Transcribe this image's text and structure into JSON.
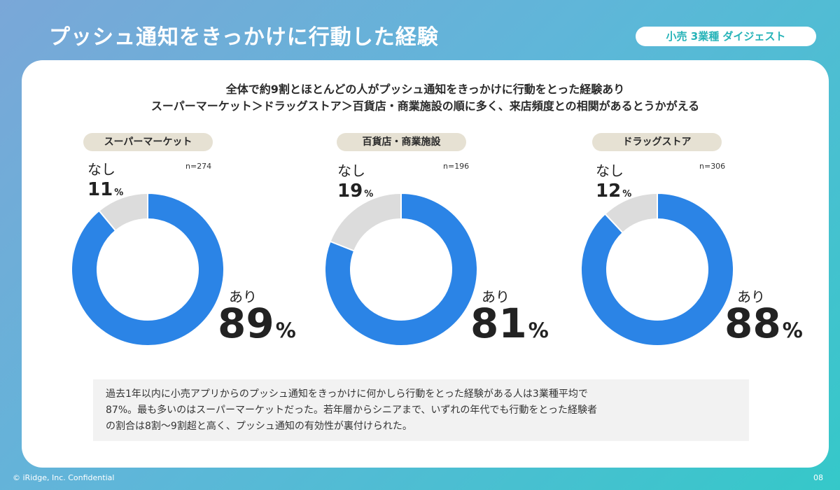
{
  "slide": {
    "title": "プッシュ通知をきっかけに行動した経験",
    "badge": "小売 3業種 ダイジェスト",
    "headline_line1": "全体で約9割とほとんどの人がプッシュ通知をきっかけに行動をとった経験あり",
    "headline_line2": "スーパーマーケット＞ドラッグストア＞百貨店・商業施設の順に多く、来店頻度との相関があるとうかがえる",
    "summary_line1": "過去1年以内に小売アプリからのプッシュ通知をきっかけに何かしら行動をとった経験がある人は3業種平均で",
    "summary_line2": "87%。最も多いのはスーパーマーケットだった。若年層からシニアまで、いずれの年代でも行動をとった経験者",
    "summary_line3": "の割合は8割〜9割超と高く、プッシュ通知の有効性が裏付けられた。",
    "footer_left": "© iRidge, Inc. Confidential",
    "page_number": "08"
  },
  "colors": {
    "yes": "#2b84e6",
    "no": "#dcdcdc",
    "pill_bg": "#e6e1d3",
    "badge_text": "#26b3b8"
  },
  "chart_data": [
    {
      "type": "pie",
      "style": "donut",
      "title": "スーパーマーケット",
      "n": "n=274",
      "slices": [
        {
          "label": "あり",
          "value": 89
        },
        {
          "label": "なし",
          "value": 11
        }
      ],
      "unit": "%"
    },
    {
      "type": "pie",
      "style": "donut",
      "title": "百貨店・商業施設",
      "n": "n=196",
      "slices": [
        {
          "label": "あり",
          "value": 81
        },
        {
          "label": "なし",
          "value": 19
        }
      ],
      "unit": "%"
    },
    {
      "type": "pie",
      "style": "donut",
      "title": "ドラッグストア",
      "n": "n=306",
      "slices": [
        {
          "label": "あり",
          "value": 88
        },
        {
          "label": "なし",
          "value": 12
        }
      ],
      "unit": "%"
    }
  ]
}
